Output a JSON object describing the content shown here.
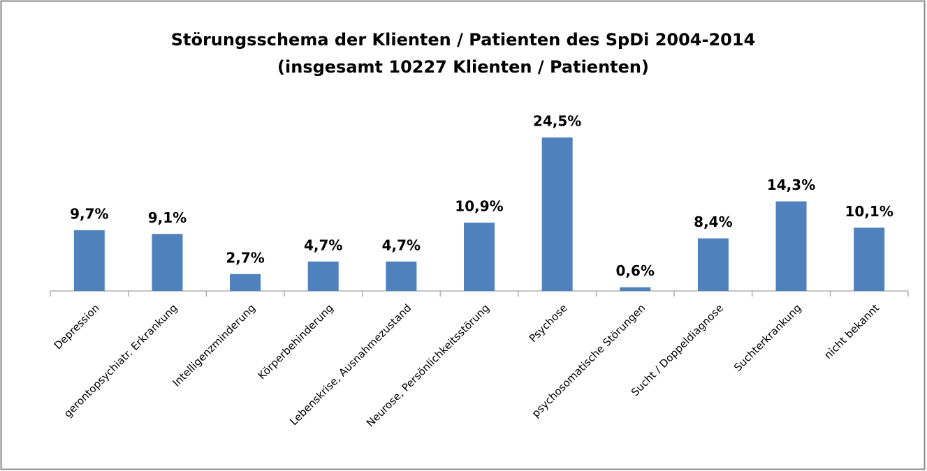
{
  "chart_data": {
    "type": "bar",
    "title": "Störungsschema der Klienten / Patienten des SpDi 2004-2014",
    "subtitle": "(insgesamt 10227 Klienten / Patienten)",
    "categories": [
      "Depression",
      "gerontopsychiatr. Erkrankung",
      "Intelligenzminderung",
      "Körperbehinderung",
      "Lebenskrise, Ausnahmezustand",
      "Neurose, Persönlichkeitsstörung",
      "Psychose",
      "psychosomatische Störungen",
      "Sucht / Doppeldiagnose",
      "Suchterkrankung",
      "nicht bekannt"
    ],
    "values": [
      9.7,
      9.1,
      2.7,
      4.7,
      4.7,
      10.9,
      24.5,
      0.6,
      8.4,
      14.3,
      10.1
    ],
    "value_labels": [
      "9,7%",
      "9,1%",
      "2,7%",
      "4,7%",
      "4,7%",
      "10,9%",
      "24,5%",
      "0,6%",
      "8,4%",
      "14,3%",
      "10,1%"
    ],
    "color": "#4f81bd"
  }
}
